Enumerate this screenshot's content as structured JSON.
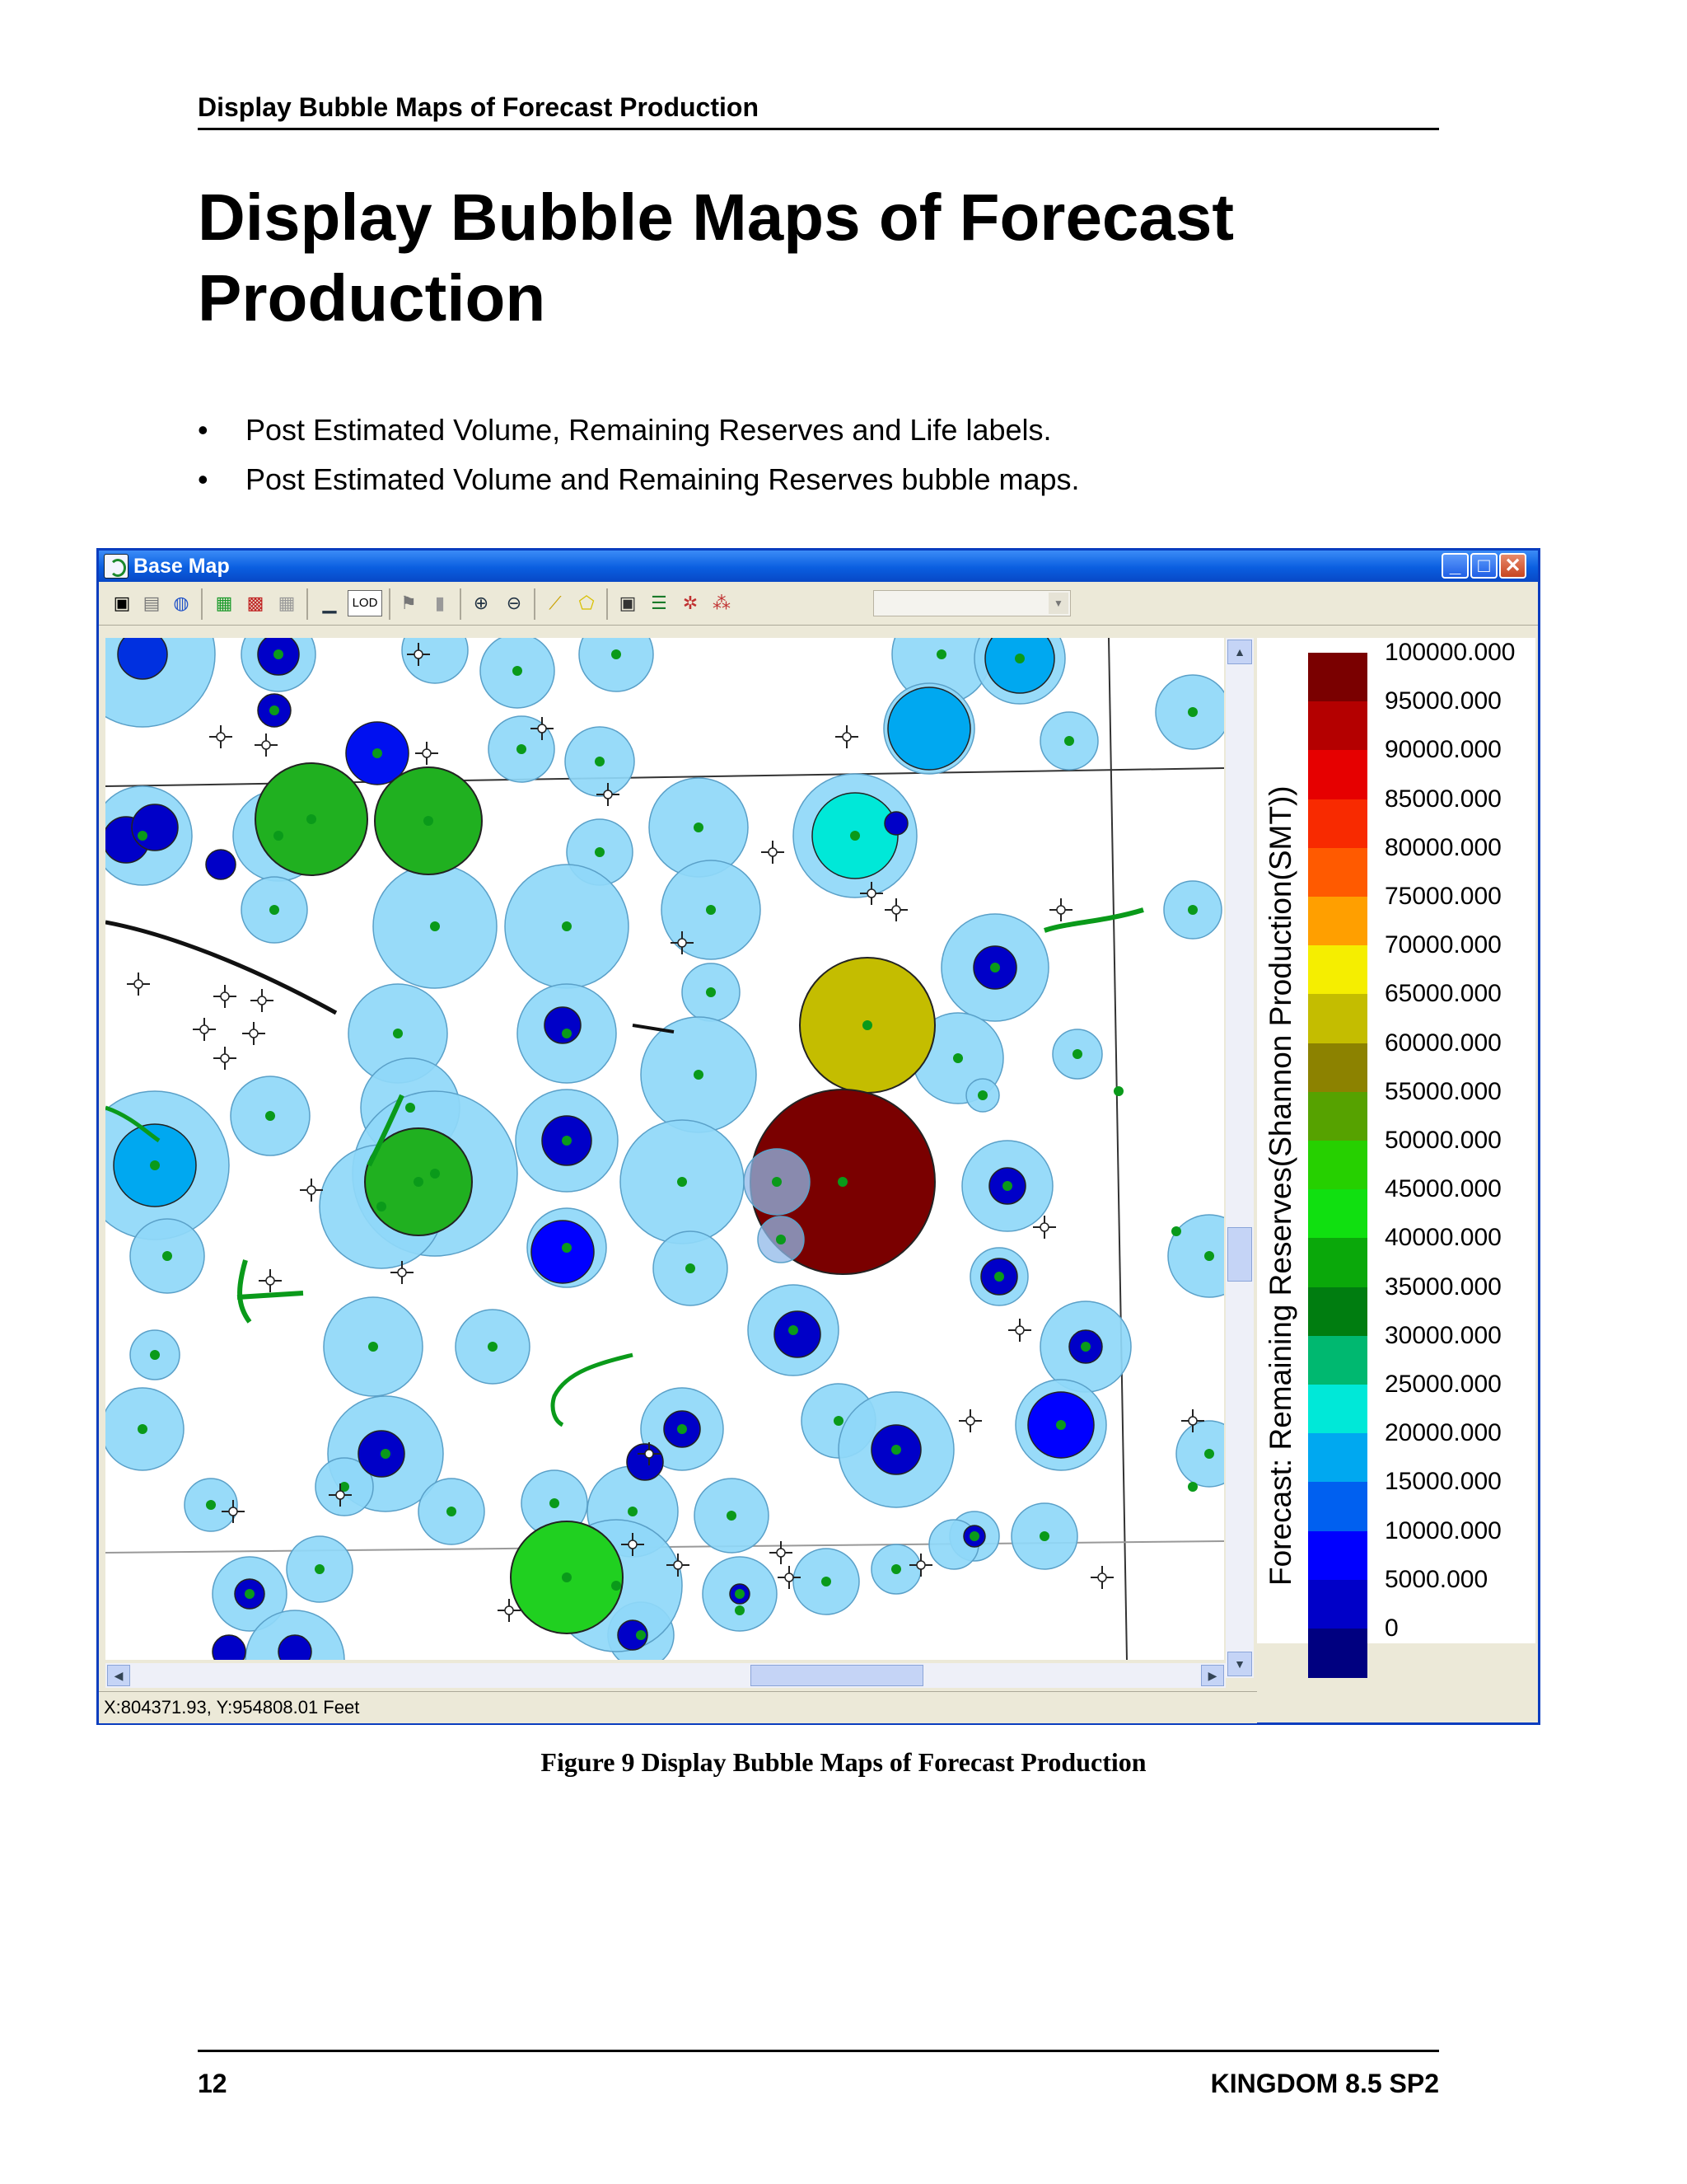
{
  "document": {
    "running_header": "Display Bubble Maps of Forecast Production",
    "title": "Display Bubble Maps of Forecast Production",
    "bullets": [
      "Post Estimated Volume, Remaining Reserves and Life labels.",
      "Post Estimated Volume and Remaining Reserves bubble maps."
    ],
    "caption": "Figure 9 Display Bubble Maps of Forecast Production",
    "page_number": "12",
    "product": "KINGDOM 8.5 SP2"
  },
  "window": {
    "title": "Base Map",
    "toolbar_lod_label": "LOD",
    "status_coords": "X:804371.93, Y:954808.01 Feet",
    "toolbar_icons": [
      "save-icon",
      "print-icon",
      "globe-icon",
      "color-map-icon",
      "contour-map-icon",
      "grid-icon",
      "ruler-icon",
      "pan-icon",
      "column-icon",
      "zoom-in-icon",
      "zoom-out-icon",
      "measure-icon",
      "select-polygon-icon",
      "layers-icon",
      "align-icon",
      "wells-icon",
      "faults-icon"
    ]
  },
  "legend": {
    "title": "Forecast: Remaining Reserves(Shannon Production(SMT))",
    "labels": [
      "100000.000",
      "95000.000",
      "90000.000",
      "85000.000",
      "80000.000",
      "75000.000",
      "70000.000",
      "65000.000",
      "60000.000",
      "55000.000",
      "50000.000",
      "45000.000",
      "40000.000",
      "35000.000",
      "30000.000",
      "25000.000",
      "20000.000",
      "15000.000",
      "10000.000",
      "5000.000",
      "0"
    ],
    "colors": [
      "#7a0000",
      "#b40000",
      "#e60000",
      "#f82a00",
      "#ff5a00",
      "#ff9f00",
      "#f5ee00",
      "#c4bd00",
      "#8c8200",
      "#56a200",
      "#26d000",
      "#10e010",
      "#0aa80a",
      "#007d10",
      "#00b870",
      "#00e8d8",
      "#00a8f0",
      "#0060f0",
      "#0000ff",
      "#0000c8",
      "#000080"
    ]
  }
}
